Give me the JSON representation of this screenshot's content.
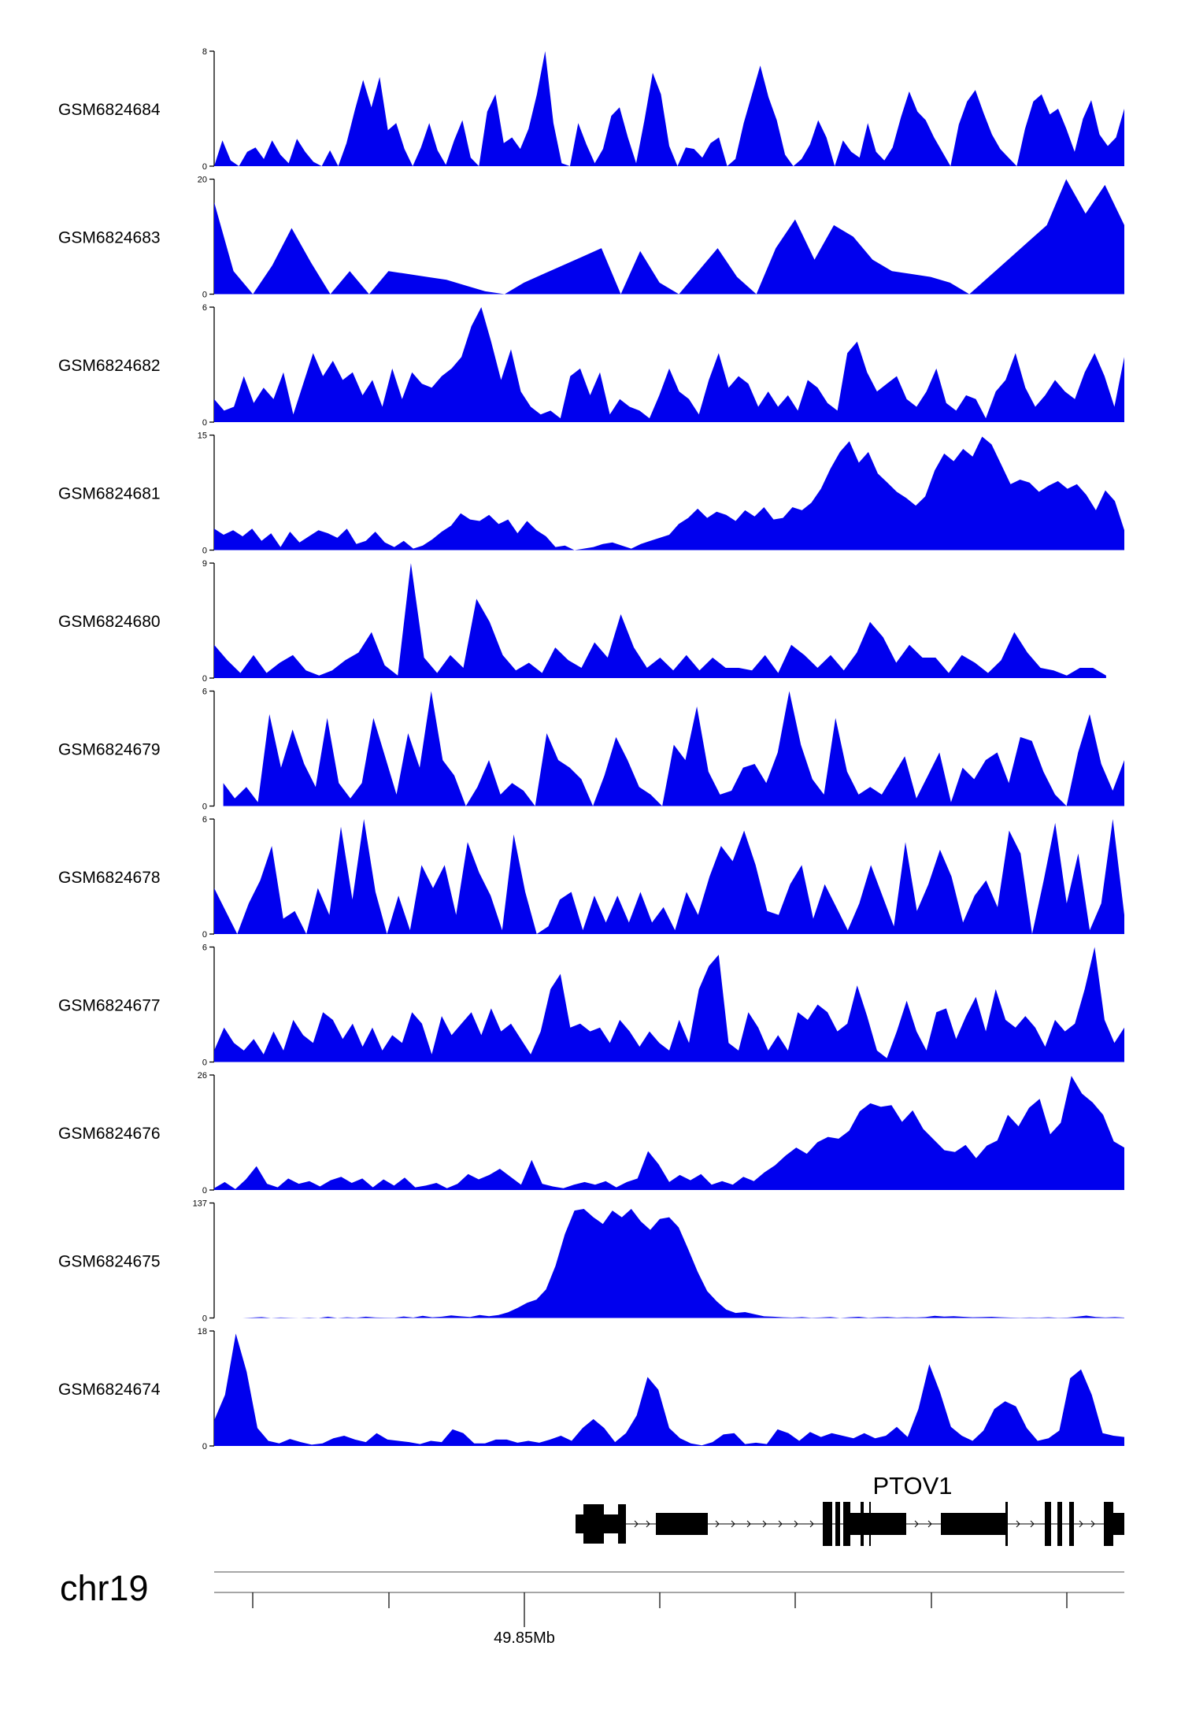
{
  "chart_data": {
    "type": "area",
    "colors": {
      "fill": "#0000ee",
      "axis": "#000000",
      "gene": "#000000",
      "ruler": "#888888"
    },
    "tracks": [
      {
        "name": "GSM6824684",
        "ymax": 8,
        "ymin_label": "0",
        "ymax_label": "8",
        "extent": [
          0,
          1
        ],
        "values": [
          0,
          1.8,
          0.4,
          0,
          1,
          1.3,
          0.5,
          1.8,
          0.8,
          0.2,
          1.9,
          1,
          0.3,
          0,
          1.1,
          0,
          1.6,
          3.9,
          6.0,
          4.1,
          6.2,
          2.5,
          3.0,
          1.2,
          0,
          1.3,
          3.0,
          1.1,
          0.1,
          1.8,
          3.2,
          0.6,
          0,
          3.8,
          5.0,
          1.6,
          2.0,
          1.2,
          2.6,
          5.0,
          8.0,
          3.0,
          0.2,
          0,
          3.0,
          1.5,
          0.2,
          1.2,
          3.5,
          4.1,
          2.0,
          0.2,
          3.2,
          6.5,
          5.0,
          1.4,
          0,
          1.3,
          1.2,
          0.6,
          1.6,
          2.0,
          0,
          0.5,
          3.0,
          5.0,
          7.0,
          4.8,
          3.2,
          0.8,
          0,
          0.5,
          1.5,
          3.2,
          2.0,
          0,
          1.8,
          1.0,
          0.6,
          3.0,
          1.0,
          0.4,
          1.3,
          3.4,
          5.2,
          3.8,
          3.2,
          2.0,
          1.0,
          0,
          2.9,
          4.5,
          5.3,
          3.7,
          2.2,
          1.2,
          0.6,
          0,
          2.6,
          4.5,
          5.0,
          3.6,
          4.0,
          2.6,
          1.0,
          3.3,
          4.6,
          2.2,
          1.4,
          2.0,
          4.0
        ]
      },
      {
        "name": "GSM6824683",
        "ymax": 20,
        "ymin_label": "0",
        "ymax_label": "20",
        "extent": [
          0,
          1
        ],
        "values": [
          16,
          4,
          0,
          5,
          11.5,
          5.5,
          0,
          4,
          0,
          4,
          3.5,
          3,
          2.5,
          1.5,
          0.5,
          0,
          2,
          3.5,
          5,
          6.5,
          8,
          0,
          7.5,
          2,
          0,
          4,
          8,
          3,
          0,
          8,
          13,
          6,
          12,
          10,
          6,
          4,
          3.5,
          3,
          2,
          0,
          3,
          6,
          9,
          12,
          20,
          14,
          19,
          12
        ]
      },
      {
        "name": "GSM6824682",
        "ymax": 6,
        "ymin_label": "0",
        "ymax_label": "6",
        "extent": [
          0,
          1
        ],
        "values": [
          1.2,
          0.6,
          0.8,
          2.4,
          1.0,
          1.8,
          1.2,
          2.6,
          0.4,
          2.0,
          3.6,
          2.4,
          3.2,
          2.2,
          2.6,
          1.4,
          2.2,
          0.8,
          2.8,
          1.2,
          2.6,
          2.0,
          1.8,
          2.4,
          2.8,
          3.4,
          5.0,
          6.0,
          4.2,
          2.2,
          3.8,
          1.6,
          0.8,
          0.4,
          0.6,
          0.2,
          2.4,
          2.8,
          1.4,
          2.6,
          0.4,
          1.2,
          0.8,
          0.6,
          0.2,
          1.4,
          2.8,
          1.6,
          1.2,
          0.4,
          2.2,
          3.6,
          1.8,
          2.4,
          2.0,
          0.8,
          1.6,
          0.8,
          1.4,
          0.6,
          2.2,
          1.8,
          1.0,
          0.6,
          3.6,
          4.2,
          2.6,
          1.6,
          2.0,
          2.4,
          1.2,
          0.8,
          1.6,
          2.8,
          1.0,
          0.6,
          1.4,
          1.2,
          0.2,
          1.6,
          2.2,
          3.6,
          1.8,
          0.8,
          1.4,
          2.2,
          1.6,
          1.2,
          2.6,
          3.6,
          2.4,
          0.8,
          3.4
        ]
      },
      {
        "name": "GSM6824681",
        "ymax": 15,
        "ymin_label": "0",
        "ymax_label": "15",
        "extent": [
          0,
          1
        ],
        "values": [
          2.8,
          2.0,
          2.6,
          1.8,
          2.8,
          1.2,
          2.2,
          0.4,
          2.4,
          1.0,
          1.8,
          2.6,
          2.2,
          1.6,
          2.8,
          0.8,
          1.2,
          2.4,
          1.0,
          0.4,
          1.2,
          0.2,
          0.6,
          1.4,
          2.4,
          3.2,
          4.8,
          4.0,
          3.8,
          4.6,
          3.4,
          4.0,
          2.2,
          3.8,
          2.6,
          1.8,
          0.4,
          0.6,
          0,
          0.2,
          0.4,
          0.8,
          1.0,
          0.6,
          0.2,
          0.8,
          1.2,
          1.6,
          2.0,
          3.4,
          4.2,
          5.4,
          4.2,
          5.0,
          4.6,
          3.8,
          5.2,
          4.4,
          5.6,
          4.0,
          4.2,
          5.6,
          5.2,
          6.2,
          8.0,
          10.6,
          12.8,
          14.2,
          11.4,
          12.8,
          10.0,
          8.8,
          7.6,
          6.8,
          5.8,
          7.0,
          10.4,
          12.6,
          11.6,
          13.2,
          12.2,
          14.8,
          13.8,
          11.2,
          8.6,
          9.2,
          8.8,
          7.6,
          8.4,
          9.0,
          8.0,
          8.6,
          7.2,
          5.2,
          7.8,
          6.4,
          2.6
        ]
      },
      {
        "name": "GSM6824680",
        "ymax": 9,
        "ymin_label": "0",
        "ymax_label": "9",
        "extent": [
          0,
          0.98
        ],
        "values": [
          2.6,
          1.4,
          0.4,
          1.8,
          0.4,
          1.2,
          1.8,
          0.6,
          0.2,
          0.6,
          1.4,
          2.0,
          3.6,
          1.0,
          0.2,
          9.0,
          1.6,
          0.4,
          1.8,
          0.8,
          6.2,
          4.4,
          1.8,
          0.6,
          1.2,
          0.4,
          2.4,
          1.4,
          0.8,
          2.8,
          1.6,
          5.0,
          2.4,
          0.8,
          1.6,
          0.6,
          1.8,
          0.6,
          1.6,
          0.8,
          0.8,
          0.6,
          1.8,
          0.4,
          2.6,
          1.8,
          0.8,
          1.8,
          0.6,
          2.0,
          4.4,
          3.2,
          1.2,
          2.6,
          1.6,
          1.6,
          0.4,
          1.8,
          1.2,
          0.4,
          1.4,
          3.6,
          2.0,
          0.8,
          0.6,
          0.2,
          0.8,
          0.8,
          0.2
        ]
      },
      {
        "name": "GSM6824679",
        "ymax": 6,
        "ymin_label": "0",
        "ymax_label": "6",
        "extent": [
          0.01,
          1
        ],
        "values": [
          1.2,
          0.4,
          1.0,
          0.2,
          4.8,
          2.0,
          4.0,
          2.2,
          1.0,
          4.6,
          1.2,
          0.4,
          1.2,
          4.6,
          2.6,
          0.6,
          3.8,
          2.0,
          6.0,
          2.4,
          1.6,
          0,
          1.0,
          2.4,
          0.6,
          1.2,
          0.8,
          0,
          3.8,
          2.4,
          2.0,
          1.4,
          0,
          1.6,
          3.6,
          2.4,
          1.0,
          0.6,
          0,
          3.2,
          2.4,
          5.2,
          1.8,
          0.6,
          0.8,
          2.0,
          2.2,
          1.2,
          2.8,
          6.0,
          3.2,
          1.4,
          0.6,
          4.6,
          1.8,
          0.6,
          1.0,
          0.6,
          1.6,
          2.6,
          0.4,
          1.6,
          2.8,
          0.2,
          2.0,
          1.4,
          2.4,
          2.8,
          1.2,
          3.6,
          3.4,
          1.8,
          0.6,
          0,
          2.8,
          4.8,
          2.2,
          0.8,
          2.4
        ]
      },
      {
        "name": "GSM6824678",
        "ymax": 6,
        "ymin_label": "0",
        "ymax_label": "6",
        "extent": [
          0,
          1
        ],
        "values": [
          2.4,
          1.2,
          0,
          1.6,
          2.8,
          4.6,
          0.8,
          1.2,
          0,
          2.4,
          1.0,
          5.6,
          1.8,
          6.0,
          2.2,
          0,
          2.0,
          0.2,
          3.6,
          2.4,
          3.6,
          1.0,
          4.8,
          3.2,
          2.0,
          0.2,
          5.2,
          2.2,
          0,
          0.4,
          1.8,
          2.2,
          0.2,
          2.0,
          0.6,
          2.0,
          0.6,
          2.2,
          0.6,
          1.4,
          0.2,
          2.2,
          1.0,
          3.0,
          4.6,
          3.8,
          5.4,
          3.6,
          1.2,
          1.0,
          2.6,
          3.6,
          0.8,
          2.6,
          1.4,
          0.2,
          1.6,
          3.6,
          2.0,
          0.4,
          4.8,
          1.2,
          2.6,
          4.4,
          3.0,
          0.6,
          2.0,
          2.8,
          1.4,
          5.4,
          4.2,
          0,
          2.8,
          5.8,
          1.6,
          4.2,
          0.2,
          1.6,
          6.0,
          1.0
        ]
      },
      {
        "name": "GSM6824677",
        "ymax": 6,
        "ymin_label": "0",
        "ymax_label": "6",
        "extent": [
          0,
          1
        ],
        "values": [
          0.6,
          1.8,
          1.0,
          0.6,
          1.2,
          0.4,
          1.6,
          0.6,
          2.2,
          1.4,
          1.0,
          2.6,
          2.2,
          1.2,
          2.0,
          0.8,
          1.8,
          0.6,
          1.4,
          1.0,
          2.6,
          2.0,
          0.4,
          2.4,
          1.4,
          2.0,
          2.6,
          1.4,
          2.8,
          1.6,
          2.0,
          1.2,
          0.4,
          1.6,
          3.8,
          4.6,
          1.8,
          2.0,
          1.6,
          1.8,
          1.0,
          2.2,
          1.6,
          0.8,
          1.6,
          1.0,
          0.6,
          2.2,
          1.0,
          3.8,
          5.0,
          5.6,
          1.0,
          0.6,
          2.6,
          1.8,
          0.6,
          1.4,
          0.6,
          2.6,
          2.2,
          3.0,
          2.6,
          1.6,
          2.0,
          4.0,
          2.4,
          0.6,
          0.2,
          1.6,
          3.2,
          1.6,
          0.6,
          2.6,
          2.8,
          1.2,
          2.4,
          3.4,
          1.6,
          3.8,
          2.2,
          1.8,
          2.4,
          1.8,
          0.8,
          2.2,
          1.6,
          2.0,
          3.8,
          6.0,
          2.2,
          1.0,
          1.8
        ]
      },
      {
        "name": "GSM6824676",
        "ymax": 26,
        "ymin_label": "0",
        "ymax_label": "26",
        "extent": [
          0,
          1
        ],
        "values": [
          0.4,
          1.8,
          0.2,
          2.4,
          5.4,
          1.4,
          0.6,
          2.6,
          1.4,
          2.0,
          0.8,
          2.2,
          3.0,
          1.6,
          2.6,
          0.6,
          2.4,
          1.0,
          2.8,
          0.6,
          1.0,
          1.6,
          0.4,
          1.4,
          3.6,
          2.4,
          3.4,
          4.8,
          3.0,
          1.2,
          6.8,
          1.4,
          0.8,
          0.4,
          1.2,
          1.8,
          1.2,
          2.0,
          0.6,
          1.8,
          2.6,
          8.8,
          5.8,
          1.8,
          3.4,
          2.2,
          3.6,
          1.2,
          2.0,
          1.2,
          3.0,
          2.0,
          4.0,
          5.6,
          7.8,
          9.6,
          8.2,
          10.8,
          12.0,
          11.6,
          13.4,
          17.8,
          19.6,
          18.8,
          19.2,
          15.4,
          18.0,
          13.8,
          11.4,
          9.0,
          8.6,
          10.2,
          7.2,
          10.0,
          11.2,
          17.0,
          14.4,
          18.6,
          20.6,
          12.6,
          15.2,
          25.8,
          21.8,
          19.8,
          17.0,
          11.0,
          9.6
        ]
      },
      {
        "name": "GSM6824675",
        "ymax": 137,
        "ymin_label": "0",
        "ymax_label": "137",
        "extent": [
          0,
          1
        ],
        "values": [
          0,
          0,
          0,
          0,
          0.5,
          1,
          0,
          0.6,
          0.3,
          0,
          0.5,
          0,
          1.5,
          0,
          0.8,
          0.3,
          1.5,
          0.6,
          0.4,
          0.2,
          1.8,
          0.5,
          2.5,
          0.8,
          1.5,
          3.0,
          2.0,
          1.2,
          3.5,
          2.2,
          3.6,
          6.8,
          12,
          18,
          22,
          34,
          62,
          100,
          128,
          130,
          120,
          112,
          128,
          120,
          130,
          115,
          105,
          118,
          120,
          108,
          82,
          55,
          32,
          20,
          10,
          6,
          7,
          4.5,
          2,
          1.5,
          0.8,
          0.5,
          1,
          0.3,
          0.6,
          1.2,
          0,
          0.8,
          1.4,
          0.3,
          0.8,
          1.2,
          0.5,
          0.8,
          0.6,
          1,
          2.5,
          1.6,
          2.2,
          1.4,
          0.8,
          1,
          1.4,
          0.8,
          0.5,
          0.2,
          0.6,
          0.4,
          0.8,
          0.3,
          0.5,
          1.5,
          2.8,
          1.2,
          0.6,
          1,
          0.5
        ]
      },
      {
        "name": "GSM6824674",
        "ymax": 18,
        "ymin_label": "0",
        "ymax_label": "18",
        "extent": [
          0,
          1
        ],
        "values": [
          4,
          8,
          17.6,
          11.6,
          2.8,
          0.8,
          0.4,
          1.1,
          0.6,
          0.2,
          0.4,
          1.2,
          1.6,
          1.0,
          0.6,
          2.0,
          1.0,
          0.8,
          0.6,
          0.3,
          0.8,
          0.6,
          2.6,
          2.0,
          0.4,
          0.4,
          1.0,
          1.0,
          0.5,
          0.8,
          0.5,
          1.0,
          1.6,
          0.8,
          2.8,
          4.2,
          2.8,
          0.6,
          2.0,
          4.8,
          10.8,
          8.8,
          2.8,
          1.2,
          0.4,
          0.1,
          0.6,
          1.8,
          2.0,
          0.3,
          0.5,
          0.3,
          2.6,
          2.0,
          0.8,
          2.2,
          1.4,
          2.0,
          1.6,
          1.2,
          2.0,
          1.2,
          1.6,
          3.0,
          1.4,
          5.8,
          12.8,
          8.4,
          3.0,
          1.6,
          0.8,
          2.4,
          5.8,
          7.0,
          6.2,
          2.8,
          0.8,
          1.2,
          2.4,
          10.6,
          12.0,
          8.0,
          2.0,
          1.6,
          1.4
        ]
      }
    ],
    "gene": {
      "name": "PTOV1"
    },
    "chromosome": "chr19",
    "ruler": {
      "major_label": "49.85Mb"
    }
  }
}
